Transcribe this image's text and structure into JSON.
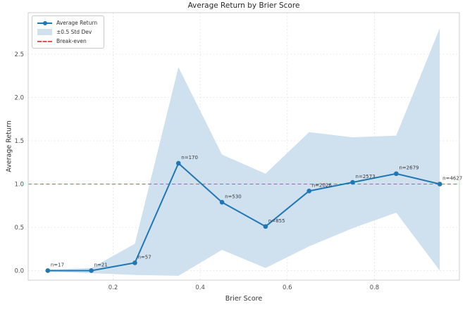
{
  "chart_data": {
    "type": "line",
    "title": "Average Return by Brier Score",
    "xlabel": "Brier Score",
    "ylabel": "Average Return",
    "xlim": [
      0.005,
      0.995
    ],
    "ylim": [
      -0.11,
      2.98
    ],
    "x_ticks": [
      0.2,
      0.4,
      0.6,
      0.8
    ],
    "y_ticks": [
      0.0,
      0.5,
      1.0,
      1.5,
      2.0,
      2.5
    ],
    "grid": "dashed",
    "break_even_y": 1.0,
    "legend": {
      "position": "upper-left",
      "entries": [
        {
          "label": "Average Return",
          "type": "line-with-marker"
        },
        {
          "label": "±0.5 Std Dev",
          "type": "patch"
        },
        {
          "label": "Break-even",
          "type": "dashed-line"
        }
      ]
    },
    "series": [
      {
        "name": "Average Return",
        "x": [
          0.05,
          0.15,
          0.25,
          0.35,
          0.45,
          0.55,
          0.65,
          0.75,
          0.85,
          0.95
        ],
        "y": [
          0.0,
          0.0,
          0.09,
          1.24,
          0.79,
          0.51,
          0.92,
          1.02,
          1.12,
          1.0
        ],
        "annotations": [
          "n=17",
          "n=21",
          "n=57",
          "n=170",
          "n=530",
          "n=855",
          "n=2026",
          "n=2573",
          "n=2679",
          "n=4627"
        ]
      },
      {
        "name": "±0.5 Std Dev",
        "x": [
          0.05,
          0.15,
          0.25,
          0.35,
          0.45,
          0.55,
          0.65,
          0.75,
          0.85,
          0.95
        ],
        "upper": [
          0.01,
          0.03,
          0.31,
          2.35,
          1.34,
          1.12,
          1.6,
          1.54,
          1.56,
          2.8
        ],
        "lower": [
          -0.01,
          -0.03,
          -0.05,
          -0.06,
          0.24,
          0.03,
          0.28,
          0.49,
          0.67,
          0.0
        ]
      }
    ],
    "colors": {
      "line": "#1f77b4",
      "band": "#cfe0ee",
      "break_even": "#d95757",
      "grid": "#e2e2e2",
      "spine": "#cfcfcf",
      "title_text": "#262626",
      "tick_text": "#4d4d4d",
      "annotation_text": "#3a3a3a"
    }
  }
}
